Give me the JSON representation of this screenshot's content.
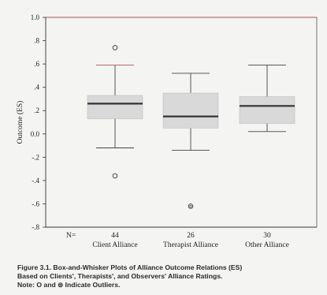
{
  "chart_data": {
    "type": "box",
    "ylabel": "Outcome (ES)",
    "ylim": [
      -0.8,
      1.0
    ],
    "yticks": [
      "1.0",
      ".8",
      ".6",
      ".4",
      ".2",
      "0.0",
      "-.2",
      "-.4",
      "-.6",
      "-.8"
    ],
    "n_prefix": "N=",
    "categories": [
      "Client Alliance",
      "Therapist Alliance",
      "Other Alliance"
    ],
    "n": [
      "44",
      "26",
      "30"
    ],
    "boxes": [
      {
        "whisker_low": -0.12,
        "q1": 0.13,
        "median": 0.26,
        "q3": 0.33,
        "whisker_high": 0.59,
        "outliers": [
          0.74,
          -0.36
        ]
      },
      {
        "whisker_low": -0.14,
        "q1": 0.05,
        "median": 0.15,
        "q3": 0.35,
        "whisker_high": 0.52,
        "outliers": [
          -0.62
        ]
      },
      {
        "whisker_low": 0.02,
        "q1": 0.09,
        "median": 0.24,
        "q3": 0.32,
        "whisker_high": 0.59,
        "outliers": []
      }
    ],
    "colors": {
      "box_fill": "#d9d9d9",
      "median": "#333333",
      "outlier_line": "#c04a4a"
    }
  },
  "caption": {
    "line1": "Figure 3.1. Box-and-Whisker Plots of Alliance Outcome Relations (ES)",
    "line2": "Based on Clients', Therapists', and Observers' Alliance Ratings.",
    "line3": "Note: O and ⊜ Indicate Outliers."
  }
}
